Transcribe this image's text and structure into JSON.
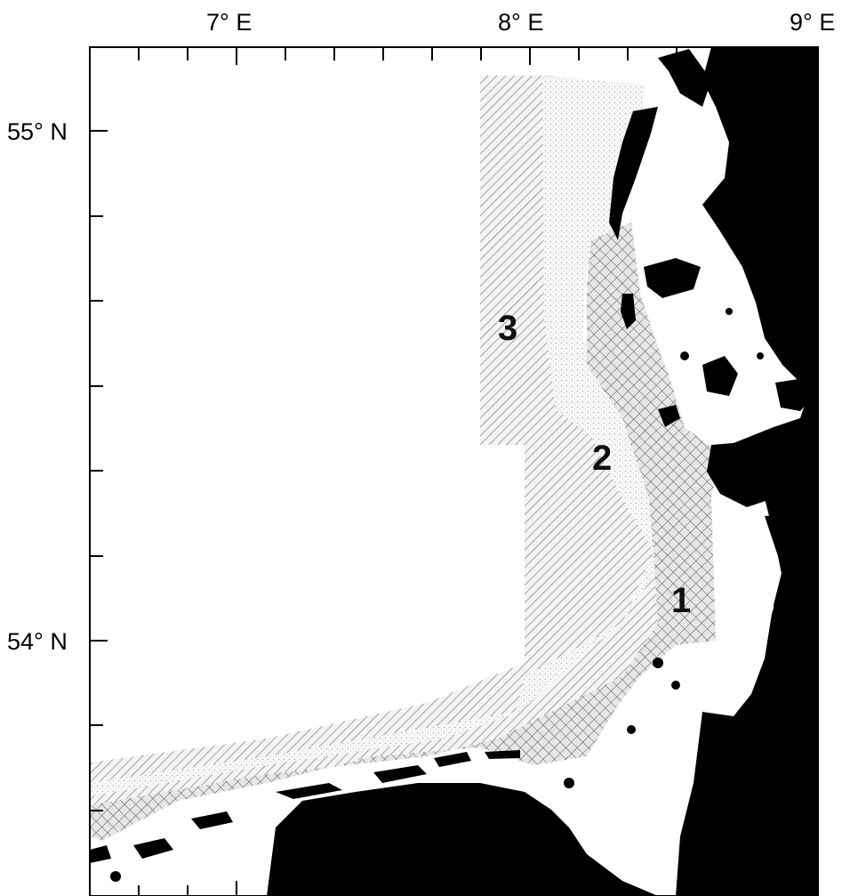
{
  "axes": {
    "x_ticks": [
      {
        "label": "7° E"
      },
      {
        "label": "8° E"
      },
      {
        "label": "9° E"
      }
    ],
    "y_ticks": [
      {
        "label": "55° N"
      },
      {
        "label": "54° N"
      }
    ]
  },
  "zones": [
    {
      "id": "1",
      "label": "1",
      "pattern": "cross-hatch"
    },
    {
      "id": "2",
      "label": "2",
      "pattern": "stipple"
    },
    {
      "id": "3",
      "label": "3",
      "pattern": "diagonal-hatch"
    }
  ],
  "colors": {
    "land": "#000000",
    "sea": "#ffffff",
    "hatch": "#555555"
  }
}
